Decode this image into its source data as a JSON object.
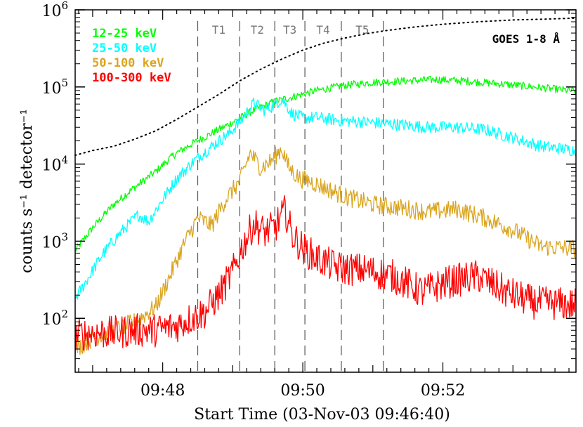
{
  "chart_data": {
    "type": "line",
    "xlabel": "Start Time (03-Nov-03 09:46:40)",
    "ylabel": "counts s⁻¹ detector⁻¹",
    "xlim_min": [
      46.75,
      53.9
    ],
    "ylim": [
      20,
      1000000
    ],
    "yscale": "log",
    "x_units": "minutes after 09:00",
    "x_ticks": [
      48,
      50,
      52
    ],
    "x_tick_labels": [
      "09:48",
      "09:50",
      "09:52"
    ],
    "y_ticks": [
      100,
      1000,
      10000,
      100000,
      1000000
    ],
    "y_tick_labels": [
      {
        "base": "10",
        "exp": "2"
      },
      {
        "base": "10",
        "exp": "3"
      },
      {
        "base": "10",
        "exp": "4"
      },
      {
        "base": "10",
        "exp": "5"
      },
      {
        "base": "10",
        "exp": "6"
      }
    ],
    "time_markers": [
      {
        "label": "T1",
        "x": 48.5
      },
      {
        "label": "T2",
        "x": 49.1
      },
      {
        "label": "T3",
        "x": 49.6
      },
      {
        "label": "T4",
        "x": 50.03
      },
      {
        "label": "T5",
        "x": 50.55
      },
      {
        "label": "",
        "x": 51.15
      }
    ],
    "series": [
      {
        "name": "12-25 keV",
        "color": "#00ff00",
        "noise": 0.05,
        "x": [
          46.75,
          47.0,
          47.3,
          47.6,
          47.9,
          48.15,
          48.4,
          48.7,
          49.0,
          49.3,
          49.6,
          49.8,
          50.2,
          50.6,
          51.0,
          51.5,
          51.9,
          52.3,
          52.8,
          53.3,
          53.9
        ],
        "y": [
          750,
          1500,
          3000,
          5000,
          8000,
          13000,
          18000,
          25000,
          35000,
          50000,
          65000,
          72000,
          90000,
          105000,
          115000,
          120000,
          125000,
          120000,
          110000,
          100000,
          88000
        ]
      },
      {
        "name": "25-50 keV",
        "color": "#00ffff",
        "noise": 0.08,
        "x": [
          46.75,
          46.95,
          47.15,
          47.4,
          47.65,
          47.8,
          48.0,
          48.2,
          48.45,
          48.7,
          48.95,
          49.1,
          49.3,
          49.45,
          49.55,
          49.7,
          49.85,
          50.0,
          50.2,
          50.5,
          50.9,
          51.3,
          51.8,
          52.2,
          52.6,
          53.0,
          53.4,
          53.9
        ],
        "y": [
          180,
          350,
          700,
          1300,
          2200,
          1800,
          3500,
          6500,
          11000,
          17000,
          25000,
          35000,
          62000,
          50000,
          55000,
          70000,
          45000,
          40000,
          40000,
          37000,
          35000,
          33000,
          30000,
          30000,
          28000,
          22000,
          17000,
          15000
        ]
      },
      {
        "name": "50-100 keV",
        "color": "#daa520",
        "noise": 0.12,
        "x": [
          46.75,
          47.0,
          47.3,
          47.6,
          47.9,
          48.1,
          48.3,
          48.5,
          48.7,
          48.9,
          49.1,
          49.25,
          49.4,
          49.55,
          49.7,
          49.8,
          49.95,
          50.1,
          50.3,
          50.6,
          51.0,
          51.4,
          51.8,
          52.2,
          52.6,
          53.0,
          53.4,
          53.9
        ],
        "y": [
          40,
          55,
          70,
          90,
          140,
          350,
          900,
          2000,
          1600,
          3500,
          6000,
          14000,
          9000,
          11000,
          16000,
          9000,
          6500,
          6000,
          5000,
          3800,
          3000,
          2700,
          2400,
          2600,
          2000,
          1400,
          850,
          800
        ]
      },
      {
        "name": "100-300 keV",
        "color": "#ff0000",
        "noise": 0.22,
        "x": [
          46.75,
          47.0,
          47.3,
          47.6,
          47.9,
          48.2,
          48.4,
          48.6,
          48.8,
          49.0,
          49.15,
          49.3,
          49.45,
          49.6,
          49.75,
          49.85,
          50.0,
          50.2,
          50.5,
          50.9,
          51.3,
          51.7,
          52.1,
          52.5,
          52.9,
          53.3,
          53.9
        ],
        "y": [
          60,
          65,
          65,
          70,
          70,
          80,
          100,
          120,
          200,
          400,
          900,
          1700,
          1300,
          1500,
          2500,
          1200,
          800,
          600,
          450,
          420,
          350,
          220,
          300,
          350,
          220,
          160,
          150
        ]
      }
    ],
    "goes": {
      "name": "GOES 1-8 Å",
      "x": [
        46.75,
        47.0,
        47.3,
        47.6,
        47.9,
        48.2,
        48.5,
        48.8,
        49.1,
        49.4,
        49.7,
        50.0,
        50.3,
        50.6,
        50.9,
        51.2,
        51.6,
        52.0,
        52.5,
        53.0,
        53.5,
        53.9
      ],
      "y": [
        13000,
        15000,
        17000,
        21000,
        27000,
        38000,
        55000,
        80000,
        120000,
        170000,
        230000,
        300000,
        370000,
        430000,
        490000,
        540000,
        600000,
        650000,
        700000,
        740000,
        760000,
        780000
      ]
    }
  }
}
